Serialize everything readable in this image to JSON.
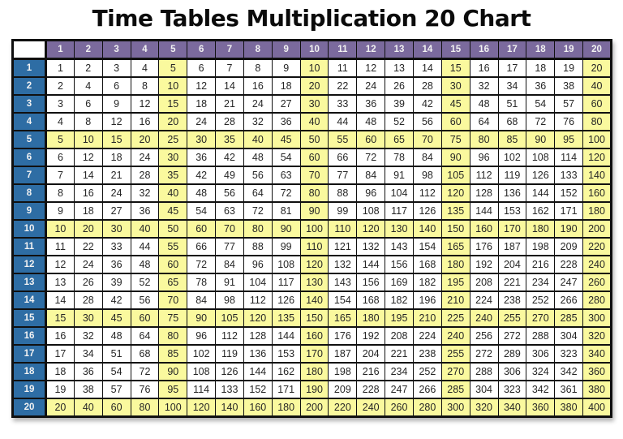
{
  "title": "Time Tables Multiplication 20 Chart",
  "colors": {
    "header_purple": "#7B6A9D",
    "header_blue": "#2E6DA4",
    "highlight_yellow": "#FAF99E",
    "cell_white": "#FFFFFF",
    "border_black": "#101010",
    "header_text": "#F2F2F2",
    "cell_text": "#262626",
    "title_text": "#0B0B0B"
  },
  "chart_data": {
    "type": "table",
    "title": "Time Tables Multiplication 20 Chart",
    "corner_label": "",
    "highlight_every": 5,
    "legend_position": "none",
    "grid": true,
    "column_headers": [
      "1",
      "2",
      "3",
      "4",
      "5",
      "6",
      "7",
      "8",
      "9",
      "10",
      "11",
      "12",
      "13",
      "14",
      "15",
      "16",
      "17",
      "18",
      "19",
      "20"
    ],
    "row_headers": [
      "1",
      "2",
      "3",
      "4",
      "5",
      "6",
      "7",
      "8",
      "9",
      "10",
      "11",
      "12",
      "13",
      "14",
      "15",
      "16",
      "17",
      "18",
      "19",
      "20"
    ],
    "rows": [
      [
        1,
        2,
        3,
        4,
        5,
        6,
        7,
        8,
        9,
        10,
        11,
        12,
        13,
        14,
        15,
        16,
        17,
        18,
        19,
        20
      ],
      [
        2,
        4,
        6,
        8,
        10,
        12,
        14,
        16,
        18,
        20,
        22,
        24,
        26,
        28,
        30,
        32,
        34,
        36,
        38,
        40
      ],
      [
        3,
        6,
        9,
        12,
        15,
        18,
        21,
        24,
        27,
        30,
        33,
        36,
        39,
        42,
        45,
        48,
        51,
        54,
        57,
        60
      ],
      [
        4,
        8,
        12,
        16,
        20,
        24,
        28,
        32,
        36,
        40,
        44,
        48,
        52,
        56,
        60,
        64,
        68,
        72,
        76,
        80
      ],
      [
        5,
        10,
        15,
        20,
        25,
        30,
        35,
        40,
        45,
        50,
        55,
        60,
        65,
        70,
        75,
        80,
        85,
        90,
        95,
        100
      ],
      [
        6,
        12,
        18,
        24,
        30,
        36,
        42,
        48,
        54,
        60,
        66,
        72,
        78,
        84,
        90,
        96,
        102,
        108,
        114,
        120
      ],
      [
        7,
        14,
        21,
        28,
        35,
        42,
        49,
        56,
        63,
        70,
        77,
        84,
        91,
        98,
        105,
        112,
        119,
        126,
        133,
        140
      ],
      [
        8,
        16,
        24,
        32,
        40,
        48,
        56,
        64,
        72,
        80,
        88,
        96,
        104,
        112,
        120,
        128,
        136,
        144,
        152,
        160
      ],
      [
        9,
        18,
        27,
        36,
        45,
        54,
        63,
        72,
        81,
        90,
        99,
        108,
        117,
        126,
        135,
        144,
        153,
        162,
        171,
        180
      ],
      [
        10,
        20,
        30,
        40,
        50,
        60,
        70,
        80,
        90,
        100,
        110,
        120,
        130,
        140,
        150,
        160,
        170,
        180,
        190,
        200
      ],
      [
        11,
        22,
        33,
        44,
        55,
        66,
        77,
        88,
        99,
        110,
        121,
        132,
        143,
        154,
        165,
        176,
        187,
        198,
        209,
        220
      ],
      [
        12,
        24,
        36,
        48,
        60,
        72,
        84,
        96,
        108,
        120,
        132,
        144,
        156,
        168,
        180,
        192,
        204,
        216,
        228,
        240
      ],
      [
        13,
        26,
        39,
        52,
        65,
        78,
        91,
        104,
        117,
        130,
        143,
        156,
        169,
        182,
        195,
        208,
        221,
        234,
        247,
        260
      ],
      [
        14,
        28,
        42,
        56,
        70,
        84,
        98,
        112,
        126,
        140,
        154,
        168,
        182,
        196,
        210,
        224,
        238,
        252,
        266,
        280
      ],
      [
        15,
        30,
        45,
        60,
        75,
        90,
        105,
        120,
        135,
        150,
        165,
        180,
        195,
        210,
        225,
        240,
        255,
        270,
        285,
        300
      ],
      [
        16,
        32,
        48,
        64,
        80,
        96,
        112,
        128,
        144,
        160,
        176,
        192,
        208,
        224,
        240,
        256,
        272,
        288,
        304,
        320
      ],
      [
        17,
        34,
        51,
        68,
        85,
        102,
        119,
        136,
        153,
        170,
        187,
        204,
        221,
        238,
        255,
        272,
        289,
        306,
        323,
        340
      ],
      [
        18,
        36,
        54,
        72,
        90,
        108,
        126,
        144,
        162,
        180,
        198,
        216,
        234,
        252,
        270,
        288,
        306,
        324,
        342,
        360
      ],
      [
        19,
        38,
        57,
        76,
        95,
        114,
        133,
        152,
        171,
        190,
        209,
        228,
        247,
        266,
        285,
        304,
        323,
        342,
        361,
        380
      ],
      [
        20,
        40,
        60,
        80,
        100,
        120,
        140,
        160,
        180,
        200,
        220,
        240,
        260,
        280,
        300,
        320,
        340,
        360,
        380,
        400
      ]
    ]
  }
}
